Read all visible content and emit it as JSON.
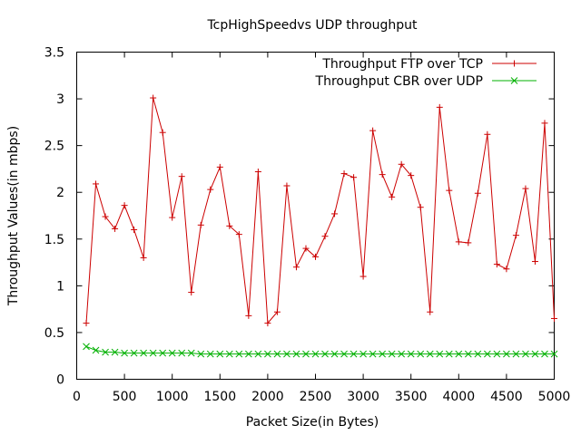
{
  "chart_data": {
    "type": "line",
    "title": "TcpHighSpeedvs UDP throughput",
    "xlabel": "Packet Size(in Bytes)",
    "ylabel": "Throughput Values(in mbps)",
    "xlim": [
      0,
      5000
    ],
    "ylim": [
      0,
      3.5
    ],
    "xticks": [
      0,
      500,
      1000,
      1500,
      2000,
      2500,
      3000,
      3500,
      4000,
      4500,
      5000
    ],
    "yticks": [
      0,
      0.5,
      1,
      1.5,
      2,
      2.5,
      3,
      3.5
    ],
    "xtick_labels": [
      "0",
      "500",
      "1000",
      "1500",
      "2000",
      "2500",
      "3000",
      "3500",
      "4000",
      "4500",
      "5000"
    ],
    "ytick_labels": [
      "0",
      "0.5",
      "1",
      "1.5",
      "2",
      "2.5",
      "3",
      "3.5"
    ],
    "grid": false,
    "legend_position": "top-right",
    "x": [
      100,
      200,
      300,
      400,
      500,
      600,
      700,
      800,
      900,
      1000,
      1100,
      1200,
      1300,
      1400,
      1500,
      1600,
      1700,
      1800,
      1900,
      2000,
      2100,
      2200,
      2300,
      2400,
      2500,
      2600,
      2700,
      2800,
      2900,
      3000,
      3100,
      3200,
      3300,
      3400,
      3500,
      3600,
      3700,
      3800,
      3900,
      4000,
      4100,
      4200,
      4300,
      4400,
      4500,
      4600,
      4700,
      4800,
      4900,
      5000
    ],
    "series": [
      {
        "name": "Throughput FTP over TCP",
        "color": "#cc0000",
        "marker": "plus",
        "values": [
          0.6,
          2.09,
          1.74,
          1.61,
          1.86,
          1.6,
          1.3,
          3.01,
          2.64,
          1.73,
          2.17,
          0.93,
          1.65,
          2.03,
          2.27,
          1.64,
          1.55,
          0.68,
          2.22,
          0.6,
          0.72,
          2.07,
          1.2,
          1.4,
          1.31,
          1.53,
          1.77,
          2.2,
          2.16,
          1.1,
          2.66,
          2.19,
          1.95,
          2.3,
          2.18,
          1.84,
          0.72,
          2.91,
          2.02,
          1.47,
          1.46,
          1.99,
          2.62,
          1.23,
          1.18,
          1.54,
          2.04,
          1.26,
          2.74,
          0.65
        ]
      },
      {
        "name": "Throughput CBR over UDP",
        "color": "#00b000",
        "marker": "cross",
        "values": [
          0.35,
          0.31,
          0.29,
          0.29,
          0.28,
          0.28,
          0.28,
          0.28,
          0.28,
          0.28,
          0.28,
          0.28,
          0.27,
          0.27,
          0.27,
          0.27,
          0.27,
          0.27,
          0.27,
          0.27,
          0.27,
          0.27,
          0.27,
          0.27,
          0.27,
          0.27,
          0.27,
          0.27,
          0.27,
          0.27,
          0.27,
          0.27,
          0.27,
          0.27,
          0.27,
          0.27,
          0.27,
          0.27,
          0.27,
          0.27,
          0.27,
          0.27,
          0.27,
          0.27,
          0.27,
          0.27,
          0.27,
          0.27,
          0.27,
          0.27
        ]
      }
    ]
  }
}
